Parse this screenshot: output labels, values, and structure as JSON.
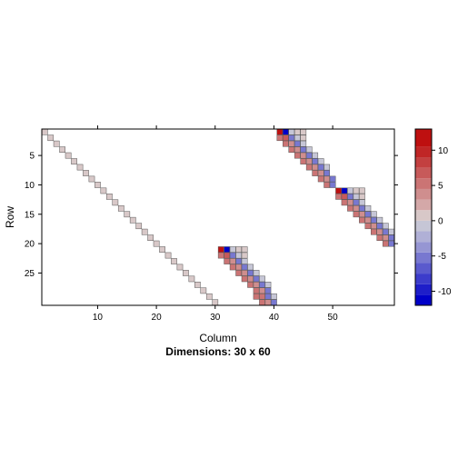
{
  "chart_data": {
    "type": "heatmap",
    "title": "",
    "xlabel": "Column",
    "ylabel": "Row",
    "sublabel": "Dimensions: 30 x 60",
    "nrow": 30,
    "ncol": 60,
    "x_ticks": [
      10,
      20,
      30,
      40,
      50
    ],
    "x_tick_labels": [
      "10",
      "20",
      "30",
      "40",
      "50"
    ],
    "y_ticks": [
      5,
      10,
      15,
      20,
      25
    ],
    "y_tick_labels": [
      "5",
      "10",
      "15",
      "20",
      "25"
    ],
    "colorbar": {
      "range": [
        -12,
        13
      ],
      "ticks": [
        10,
        5,
        0,
        -5,
        -10
      ],
      "tick_labels": [
        "10",
        "5",
        "0",
        "-5",
        "-10"
      ],
      "breaks": [
        -12,
        -10.5,
        -9,
        -7.5,
        -6,
        -4.5,
        -3,
        -1.5,
        0,
        1.5,
        3,
        4.5,
        6,
        7.5,
        9,
        10.5,
        13
      ],
      "colors": [
        "#0000C8",
        "#1E1EC9",
        "#3C3CCB",
        "#5A5ACD",
        "#7878D0",
        "#9696D3",
        "#B0B0D6",
        "#C6C6D6",
        "#D8C8C8",
        "#D4A8A8",
        "#CF8E8E",
        "#CB7474",
        "#C75A5A",
        "#C34040",
        "#C02626",
        "#BE1010"
      ]
    },
    "entries": [
      {
        "row": 1,
        "col": 1,
        "value": 0.4
      },
      {
        "row": 2,
        "col": 2,
        "value": 0.4
      },
      {
        "row": 3,
        "col": 3,
        "value": 0.4
      },
      {
        "row": 4,
        "col": 4,
        "value": 0.4
      },
      {
        "row": 5,
        "col": 5,
        "value": 0.4
      },
      {
        "row": 6,
        "col": 6,
        "value": 0.4
      },
      {
        "row": 7,
        "col": 7,
        "value": 0.4
      },
      {
        "row": 8,
        "col": 8,
        "value": 0.4
      },
      {
        "row": 9,
        "col": 9,
        "value": 0.4
      },
      {
        "row": 10,
        "col": 10,
        "value": 0.4
      },
      {
        "row": 11,
        "col": 11,
        "value": 0.4
      },
      {
        "row": 12,
        "col": 12,
        "value": 0.4
      },
      {
        "row": 13,
        "col": 13,
        "value": 0.4
      },
      {
        "row": 14,
        "col": 14,
        "value": 0.4
      },
      {
        "row": 15,
        "col": 15,
        "value": 0.4
      },
      {
        "row": 16,
        "col": 16,
        "value": 0.4
      },
      {
        "row": 17,
        "col": 17,
        "value": 0.4
      },
      {
        "row": 18,
        "col": 18,
        "value": 0.4
      },
      {
        "row": 19,
        "col": 19,
        "value": 0.4
      },
      {
        "row": 20,
        "col": 20,
        "value": 0.4
      },
      {
        "row": 21,
        "col": 21,
        "value": 0.4
      },
      {
        "row": 22,
        "col": 22,
        "value": 0.4
      },
      {
        "row": 23,
        "col": 23,
        "value": 0.4
      },
      {
        "row": 24,
        "col": 24,
        "value": 0.4
      },
      {
        "row": 25,
        "col": 25,
        "value": 0.4
      },
      {
        "row": 26,
        "col": 26,
        "value": 0.4
      },
      {
        "row": 27,
        "col": 27,
        "value": 0.4
      },
      {
        "row": 28,
        "col": 28,
        "value": 0.4
      },
      {
        "row": 29,
        "col": 29,
        "value": 0.4
      },
      {
        "row": 30,
        "col": 30,
        "value": 0.4
      },
      {
        "row": 1,
        "col": 41,
        "value": 12
      },
      {
        "row": 1,
        "col": 42,
        "value": -12
      },
      {
        "row": 1,
        "col": 43,
        "value": -1
      },
      {
        "row": 1,
        "col": 44,
        "value": 0.3
      },
      {
        "row": 1,
        "col": 45,
        "value": 0.3
      },
      {
        "row": 2,
        "col": 41,
        "value": 5
      },
      {
        "row": 2,
        "col": 42,
        "value": 6
      },
      {
        "row": 2,
        "col": 43,
        "value": -5
      },
      {
        "row": 2,
        "col": 44,
        "value": -1
      },
      {
        "row": 2,
        "col": 45,
        "value": 0.3
      },
      {
        "row": 3,
        "col": 42,
        "value": 5
      },
      {
        "row": 3,
        "col": 43,
        "value": 4
      },
      {
        "row": 3,
        "col": 44,
        "value": -5
      },
      {
        "row": 3,
        "col": 45,
        "value": -1
      },
      {
        "row": 4,
        "col": 43,
        "value": 5
      },
      {
        "row": 4,
        "col": 44,
        "value": 4
      },
      {
        "row": 4,
        "col": 45,
        "value": -5
      },
      {
        "row": 4,
        "col": 46,
        "value": -1
      },
      {
        "row": 5,
        "col": 44,
        "value": 5
      },
      {
        "row": 5,
        "col": 45,
        "value": 4
      },
      {
        "row": 5,
        "col": 46,
        "value": -5
      },
      {
        "row": 5,
        "col": 47,
        "value": -1
      },
      {
        "row": 6,
        "col": 45,
        "value": 5
      },
      {
        "row": 6,
        "col": 46,
        "value": 4
      },
      {
        "row": 6,
        "col": 47,
        "value": -5
      },
      {
        "row": 6,
        "col": 48,
        "value": -1
      },
      {
        "row": 7,
        "col": 46,
        "value": 5
      },
      {
        "row": 7,
        "col": 47,
        "value": 4
      },
      {
        "row": 7,
        "col": 48,
        "value": -5
      },
      {
        "row": 7,
        "col": 49,
        "value": -1
      },
      {
        "row": 8,
        "col": 47,
        "value": 5
      },
      {
        "row": 8,
        "col": 48,
        "value": 4
      },
      {
        "row": 8,
        "col": 49,
        "value": -5
      },
      {
        "row": 9,
        "col": 48,
        "value": 5
      },
      {
        "row": 9,
        "col": 49,
        "value": 4
      },
      {
        "row": 9,
        "col": 50,
        "value": -5
      },
      {
        "row": 10,
        "col": 49,
        "value": 5
      },
      {
        "row": 10,
        "col": 50,
        "value": -5
      },
      {
        "row": 11,
        "col": 51,
        "value": 12
      },
      {
        "row": 11,
        "col": 52,
        "value": -12
      },
      {
        "row": 11,
        "col": 53,
        "value": -1
      },
      {
        "row": 11,
        "col": 54,
        "value": 0.3
      },
      {
        "row": 11,
        "col": 55,
        "value": 0.3
      },
      {
        "row": 12,
        "col": 51,
        "value": 5
      },
      {
        "row": 12,
        "col": 52,
        "value": 6
      },
      {
        "row": 12,
        "col": 53,
        "value": -5
      },
      {
        "row": 12,
        "col": 54,
        "value": -1
      },
      {
        "row": 12,
        "col": 55,
        "value": 0.3
      },
      {
        "row": 13,
        "col": 52,
        "value": 5
      },
      {
        "row": 13,
        "col": 53,
        "value": 4
      },
      {
        "row": 13,
        "col": 54,
        "value": -5
      },
      {
        "row": 13,
        "col": 55,
        "value": -1
      },
      {
        "row": 14,
        "col": 53,
        "value": 5
      },
      {
        "row": 14,
        "col": 54,
        "value": 4
      },
      {
        "row": 14,
        "col": 55,
        "value": -5
      },
      {
        "row": 14,
        "col": 56,
        "value": -1
      },
      {
        "row": 15,
        "col": 54,
        "value": 5
      },
      {
        "row": 15,
        "col": 55,
        "value": 4
      },
      {
        "row": 15,
        "col": 56,
        "value": -5
      },
      {
        "row": 15,
        "col": 57,
        "value": -1
      },
      {
        "row": 16,
        "col": 55,
        "value": 5
      },
      {
        "row": 16,
        "col": 56,
        "value": 4
      },
      {
        "row": 16,
        "col": 57,
        "value": -5
      },
      {
        "row": 16,
        "col": 58,
        "value": -1
      },
      {
        "row": 17,
        "col": 56,
        "value": 5
      },
      {
        "row": 17,
        "col": 57,
        "value": 4
      },
      {
        "row": 17,
        "col": 58,
        "value": -5
      },
      {
        "row": 17,
        "col": 59,
        "value": -1
      },
      {
        "row": 18,
        "col": 57,
        "value": 5
      },
      {
        "row": 18,
        "col": 58,
        "value": 4
      },
      {
        "row": 18,
        "col": 59,
        "value": -5
      },
      {
        "row": 18,
        "col": 60,
        "value": -1
      },
      {
        "row": 19,
        "col": 58,
        "value": 5
      },
      {
        "row": 19,
        "col": 59,
        "value": 4
      },
      {
        "row": 19,
        "col": 60,
        "value": -5
      },
      {
        "row": 20,
        "col": 59,
        "value": 5
      },
      {
        "row": 20,
        "col": 60,
        "value": -5
      },
      {
        "row": 21,
        "col": 31,
        "value": 12
      },
      {
        "row": 21,
        "col": 32,
        "value": -12
      },
      {
        "row": 21,
        "col": 33,
        "value": -1
      },
      {
        "row": 21,
        "col": 34,
        "value": 0.3
      },
      {
        "row": 21,
        "col": 35,
        "value": 0.3
      },
      {
        "row": 22,
        "col": 31,
        "value": 5
      },
      {
        "row": 22,
        "col": 32,
        "value": 6
      },
      {
        "row": 22,
        "col": 33,
        "value": -5
      },
      {
        "row": 22,
        "col": 34,
        "value": -1
      },
      {
        "row": 22,
        "col": 35,
        "value": 0.3
      },
      {
        "row": 23,
        "col": 32,
        "value": 5
      },
      {
        "row": 23,
        "col": 33,
        "value": 4
      },
      {
        "row": 23,
        "col": 34,
        "value": -5
      },
      {
        "row": 23,
        "col": 35,
        "value": -1
      },
      {
        "row": 24,
        "col": 33,
        "value": 5
      },
      {
        "row": 24,
        "col": 34,
        "value": 4
      },
      {
        "row": 24,
        "col": 35,
        "value": -5
      },
      {
        "row": 24,
        "col": 36,
        "value": -1
      },
      {
        "row": 25,
        "col": 34,
        "value": 5
      },
      {
        "row": 25,
        "col": 35,
        "value": 4
      },
      {
        "row": 25,
        "col": 36,
        "value": -5
      },
      {
        "row": 25,
        "col": 37,
        "value": -1
      },
      {
        "row": 26,
        "col": 35,
        "value": 5
      },
      {
        "row": 26,
        "col": 36,
        "value": 4
      },
      {
        "row": 26,
        "col": 37,
        "value": -5
      },
      {
        "row": 26,
        "col": 38,
        "value": -1
      },
      {
        "row": 27,
        "col": 36,
        "value": 5
      },
      {
        "row": 27,
        "col": 37,
        "value": 4
      },
      {
        "row": 27,
        "col": 38,
        "value": -5
      },
      {
        "row": 27,
        "col": 39,
        "value": -1
      },
      {
        "row": 28,
        "col": 37,
        "value": 5
      },
      {
        "row": 28,
        "col": 38,
        "value": 4
      },
      {
        "row": 28,
        "col": 39,
        "value": -5
      },
      {
        "row": 29,
        "col": 37,
        "value": 5
      },
      {
        "row": 29,
        "col": 38,
        "value": 5
      },
      {
        "row": 29,
        "col": 39,
        "value": -5
      },
      {
        "row": 29,
        "col": 40,
        "value": -1
      },
      {
        "row": 30,
        "col": 38,
        "value": 5
      },
      {
        "row": 30,
        "col": 39,
        "value": 4
      },
      {
        "row": 30,
        "col": 40,
        "value": -5
      }
    ]
  }
}
